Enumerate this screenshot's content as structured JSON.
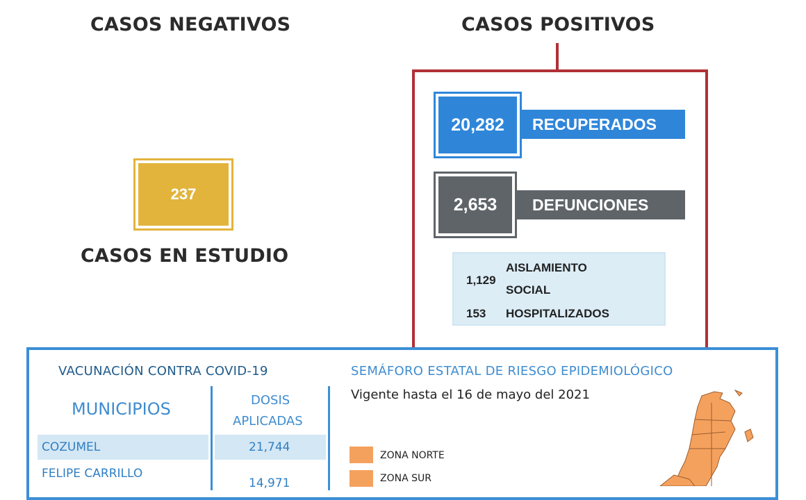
{
  "negativos": {
    "label": "CASOS NEGATIVOS"
  },
  "positivos": {
    "label": "CASOS POSITIVOS",
    "recuperados": {
      "value": "20,282",
      "label": "RECUPERADOS",
      "color": "#2f86d9"
    },
    "defunciones": {
      "value": "2,653",
      "label": "DEFUNCIONES",
      "color": "#5f6469"
    },
    "aislamiento": {
      "value": "1,129",
      "label_line1": "AISLAMIENTO",
      "label_line2": "SOCIAL"
    },
    "hospitalizados": {
      "value": "153",
      "label": "HOSPITALIZADOS"
    },
    "frame_color": "#b03036"
  },
  "estudio": {
    "value": "237",
    "label": "CASOS EN ESTUDIO",
    "color": "#e2b43c"
  },
  "vacunacion": {
    "title": "VACUNACIÓN CONTRA COVID-19",
    "col_municipios": "MUNICIPIOS",
    "col_dosis_line1": "DOSIS",
    "col_dosis_line2": "APLICADAS",
    "rows": [
      {
        "municipio": "COZUMEL",
        "dosis": "21,744"
      },
      {
        "municipio": "FELIPE CARRILLO",
        "dosis": "14,971"
      }
    ]
  },
  "semaforo": {
    "title": "SEMÁFORO ESTATAL DE RIESGO EPIDEMIOLÓGICO",
    "subtitle": "Vigente hasta el 16 de mayo del 2021",
    "legend": [
      {
        "label": "ZONA NORTE",
        "color": "#f5a15e"
      },
      {
        "label": "ZONA SUR",
        "color": "#f5a15e"
      }
    ]
  }
}
